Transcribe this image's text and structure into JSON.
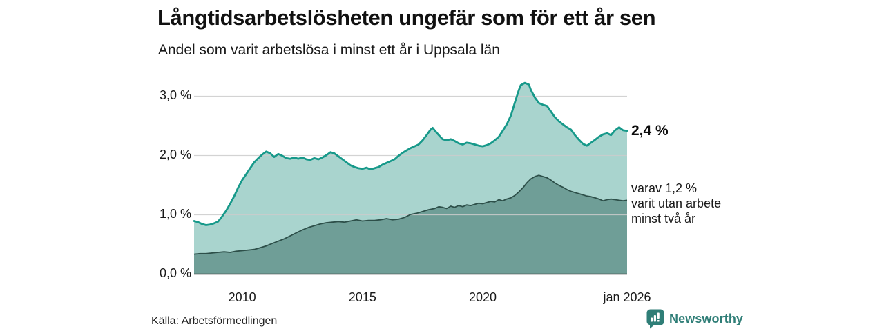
{
  "header": {
    "title": "Långtidsarbetslösheten ungefär som för ett år sen",
    "subtitle": "Andel som varit arbetslösa i minst ett år i Uppsala län"
  },
  "annotations": {
    "end_value_label": "2,4 %",
    "varav_lines": [
      "varav 1,2 %",
      "varit utan arbete",
      "minst två år"
    ]
  },
  "footer": {
    "source": "Källa: Arbetsförmedlingen",
    "brand": "Newsworthy",
    "brand_icon": "newsworthy-speech-bubble-bar-chart"
  },
  "colors": {
    "total_line": "#17998a",
    "total_fill": "#a9d4ce",
    "two_year_line": "#2d4f49",
    "two_year_fill": "#6f9e97",
    "grid": "#cccccc",
    "axis": "#3d3d3d",
    "brand_teal": "#2f7e77",
    "text": "#1a1a1a"
  },
  "chart_data": {
    "type": "area",
    "title": "Långtidsarbetslösheten ungefär som för ett år sen",
    "subtitle": "Andel som varit arbetslösa i minst ett år i Uppsala län",
    "xlabel": "",
    "ylabel": "",
    "x_range": [
      2008,
      2026
    ],
    "ylim": [
      0,
      3.45
    ],
    "grid": true,
    "legend_position": "right-annotations",
    "y_ticks": [
      {
        "value": 0,
        "label": "0,0 %"
      },
      {
        "value": 1,
        "label": "1,0 %"
      },
      {
        "value": 2,
        "label": "2,0 %"
      },
      {
        "value": 3,
        "label": "3,0 %"
      }
    ],
    "x_ticks": [
      {
        "year": 2010,
        "label": "2010"
      },
      {
        "year": 2015,
        "label": "2015"
      },
      {
        "year": 2020,
        "label": "2020"
      },
      {
        "year": 2026,
        "label": "jan 2026"
      }
    ],
    "series": [
      {
        "name": "arbetslosa-minst-ett-ar",
        "end_label": "2,4 %",
        "end_value": 2.4,
        "points": [
          [
            2008.0,
            0.89
          ],
          [
            2008.17,
            0.87
          ],
          [
            2008.33,
            0.84
          ],
          [
            2008.5,
            0.82
          ],
          [
            2008.67,
            0.83
          ],
          [
            2008.83,
            0.85
          ],
          [
            2009.0,
            0.88
          ],
          [
            2009.17,
            0.97
          ],
          [
            2009.33,
            1.06
          ],
          [
            2009.5,
            1.18
          ],
          [
            2009.67,
            1.31
          ],
          [
            2009.83,
            1.45
          ],
          [
            2010.0,
            1.58
          ],
          [
            2010.17,
            1.68
          ],
          [
            2010.33,
            1.78
          ],
          [
            2010.5,
            1.88
          ],
          [
            2010.67,
            1.95
          ],
          [
            2010.83,
            2.01
          ],
          [
            2011.0,
            2.06
          ],
          [
            2011.17,
            2.03
          ],
          [
            2011.33,
            1.97
          ],
          [
            2011.5,
            2.02
          ],
          [
            2011.67,
            1.99
          ],
          [
            2011.83,
            1.95
          ],
          [
            2012.0,
            1.94
          ],
          [
            2012.17,
            1.96
          ],
          [
            2012.33,
            1.94
          ],
          [
            2012.5,
            1.96
          ],
          [
            2012.67,
            1.93
          ],
          [
            2012.83,
            1.92
          ],
          [
            2013.0,
            1.95
          ],
          [
            2013.17,
            1.93
          ],
          [
            2013.33,
            1.96
          ],
          [
            2013.5,
            2.0
          ],
          [
            2013.67,
            2.05
          ],
          [
            2013.83,
            2.03
          ],
          [
            2014.0,
            1.98
          ],
          [
            2014.17,
            1.93
          ],
          [
            2014.33,
            1.88
          ],
          [
            2014.5,
            1.83
          ],
          [
            2014.67,
            1.8
          ],
          [
            2014.83,
            1.78
          ],
          [
            2015.0,
            1.77
          ],
          [
            2015.17,
            1.79
          ],
          [
            2015.33,
            1.76
          ],
          [
            2015.5,
            1.78
          ],
          [
            2015.67,
            1.8
          ],
          [
            2015.83,
            1.84
          ],
          [
            2016.0,
            1.87
          ],
          [
            2016.17,
            1.9
          ],
          [
            2016.33,
            1.93
          ],
          [
            2016.5,
            1.99
          ],
          [
            2016.67,
            2.04
          ],
          [
            2016.83,
            2.08
          ],
          [
            2017.0,
            2.12
          ],
          [
            2017.17,
            2.15
          ],
          [
            2017.33,
            2.18
          ],
          [
            2017.5,
            2.25
          ],
          [
            2017.67,
            2.34
          ],
          [
            2017.83,
            2.43
          ],
          [
            2017.92,
            2.46
          ],
          [
            2018.0,
            2.42
          ],
          [
            2018.17,
            2.34
          ],
          [
            2018.33,
            2.27
          ],
          [
            2018.5,
            2.25
          ],
          [
            2018.67,
            2.27
          ],
          [
            2018.83,
            2.24
          ],
          [
            2019.0,
            2.2
          ],
          [
            2019.17,
            2.18
          ],
          [
            2019.33,
            2.21
          ],
          [
            2019.5,
            2.2
          ],
          [
            2019.67,
            2.18
          ],
          [
            2019.83,
            2.16
          ],
          [
            2020.0,
            2.15
          ],
          [
            2020.17,
            2.17
          ],
          [
            2020.33,
            2.2
          ],
          [
            2020.5,
            2.25
          ],
          [
            2020.67,
            2.31
          ],
          [
            2020.83,
            2.41
          ],
          [
            2021.0,
            2.52
          ],
          [
            2021.17,
            2.67
          ],
          [
            2021.33,
            2.88
          ],
          [
            2021.5,
            3.1
          ],
          [
            2021.58,
            3.18
          ],
          [
            2021.75,
            3.22
          ],
          [
            2021.92,
            3.19
          ],
          [
            2022.0,
            3.1
          ],
          [
            2022.17,
            2.97
          ],
          [
            2022.33,
            2.88
          ],
          [
            2022.5,
            2.85
          ],
          [
            2022.67,
            2.83
          ],
          [
            2022.83,
            2.74
          ],
          [
            2023.0,
            2.64
          ],
          [
            2023.17,
            2.57
          ],
          [
            2023.33,
            2.52
          ],
          [
            2023.5,
            2.47
          ],
          [
            2023.67,
            2.43
          ],
          [
            2023.83,
            2.34
          ],
          [
            2024.0,
            2.26
          ],
          [
            2024.17,
            2.19
          ],
          [
            2024.33,
            2.16
          ],
          [
            2024.5,
            2.21
          ],
          [
            2024.67,
            2.26
          ],
          [
            2024.83,
            2.31
          ],
          [
            2025.0,
            2.35
          ],
          [
            2025.17,
            2.37
          ],
          [
            2025.33,
            2.34
          ],
          [
            2025.5,
            2.42
          ],
          [
            2025.67,
            2.47
          ],
          [
            2025.83,
            2.42
          ],
          [
            2026.0,
            2.41
          ]
        ]
      },
      {
        "name": "utan-arbete-minst-tva-ar",
        "annotation": "varav 1,2 % varit utan arbete minst två år",
        "end_value": 1.2,
        "points": [
          [
            2008.0,
            0.33
          ],
          [
            2008.25,
            0.34
          ],
          [
            2008.5,
            0.34
          ],
          [
            2008.75,
            0.35
          ],
          [
            2009.0,
            0.36
          ],
          [
            2009.25,
            0.37
          ],
          [
            2009.5,
            0.36
          ],
          [
            2009.75,
            0.38
          ],
          [
            2010.0,
            0.39
          ],
          [
            2010.25,
            0.4
          ],
          [
            2010.5,
            0.41
          ],
          [
            2010.75,
            0.44
          ],
          [
            2011.0,
            0.47
          ],
          [
            2011.25,
            0.51
          ],
          [
            2011.5,
            0.55
          ],
          [
            2011.75,
            0.59
          ],
          [
            2012.0,
            0.64
          ],
          [
            2012.25,
            0.69
          ],
          [
            2012.5,
            0.74
          ],
          [
            2012.75,
            0.78
          ],
          [
            2013.0,
            0.81
          ],
          [
            2013.25,
            0.84
          ],
          [
            2013.5,
            0.86
          ],
          [
            2013.75,
            0.87
          ],
          [
            2014.0,
            0.88
          ],
          [
            2014.25,
            0.87
          ],
          [
            2014.5,
            0.89
          ],
          [
            2014.75,
            0.91
          ],
          [
            2015.0,
            0.89
          ],
          [
            2015.25,
            0.9
          ],
          [
            2015.5,
            0.9
          ],
          [
            2015.75,
            0.91
          ],
          [
            2016.0,
            0.93
          ],
          [
            2016.25,
            0.91
          ],
          [
            2016.5,
            0.92
          ],
          [
            2016.75,
            0.95
          ],
          [
            2017.0,
            1.0
          ],
          [
            2017.25,
            1.02
          ],
          [
            2017.5,
            1.05
          ],
          [
            2017.75,
            1.08
          ],
          [
            2018.0,
            1.1
          ],
          [
            2018.17,
            1.13
          ],
          [
            2018.33,
            1.12
          ],
          [
            2018.5,
            1.1
          ],
          [
            2018.67,
            1.14
          ],
          [
            2018.83,
            1.12
          ],
          [
            2019.0,
            1.15
          ],
          [
            2019.17,
            1.13
          ],
          [
            2019.33,
            1.16
          ],
          [
            2019.5,
            1.15
          ],
          [
            2019.67,
            1.17
          ],
          [
            2019.83,
            1.19
          ],
          [
            2020.0,
            1.18
          ],
          [
            2020.17,
            1.2
          ],
          [
            2020.33,
            1.22
          ],
          [
            2020.5,
            1.21
          ],
          [
            2020.67,
            1.25
          ],
          [
            2020.83,
            1.23
          ],
          [
            2021.0,
            1.26
          ],
          [
            2021.17,
            1.28
          ],
          [
            2021.33,
            1.32
          ],
          [
            2021.5,
            1.38
          ],
          [
            2021.67,
            1.45
          ],
          [
            2021.83,
            1.53
          ],
          [
            2022.0,
            1.6
          ],
          [
            2022.17,
            1.64
          ],
          [
            2022.33,
            1.66
          ],
          [
            2022.5,
            1.64
          ],
          [
            2022.67,
            1.62
          ],
          [
            2022.83,
            1.58
          ],
          [
            2023.0,
            1.53
          ],
          [
            2023.17,
            1.49
          ],
          [
            2023.33,
            1.46
          ],
          [
            2023.5,
            1.42
          ],
          [
            2023.67,
            1.39
          ],
          [
            2023.83,
            1.37
          ],
          [
            2024.0,
            1.35
          ],
          [
            2024.17,
            1.33
          ],
          [
            2024.33,
            1.31
          ],
          [
            2024.5,
            1.3
          ],
          [
            2024.67,
            1.28
          ],
          [
            2024.83,
            1.26
          ],
          [
            2025.0,
            1.23
          ],
          [
            2025.17,
            1.25
          ],
          [
            2025.33,
            1.26
          ],
          [
            2025.5,
            1.25
          ],
          [
            2025.67,
            1.24
          ],
          [
            2025.83,
            1.23
          ],
          [
            2026.0,
            1.24
          ]
        ]
      }
    ]
  }
}
